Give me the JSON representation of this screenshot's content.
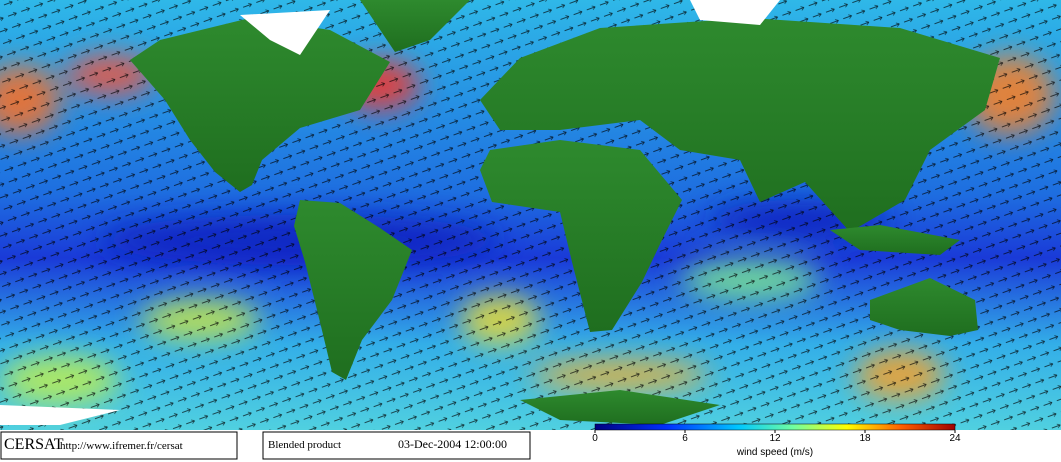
{
  "footer": {
    "logo": "CERSAT",
    "url": "http://www.ifremer.fr/cersat",
    "product": "Blended product",
    "date": "03-Dec-2004 12:00:00"
  },
  "colorbar": {
    "label": "wind speed (m/s)",
    "range": [
      0,
      24
    ],
    "ticks": [
      0,
      6,
      12,
      18,
      24
    ]
  }
}
